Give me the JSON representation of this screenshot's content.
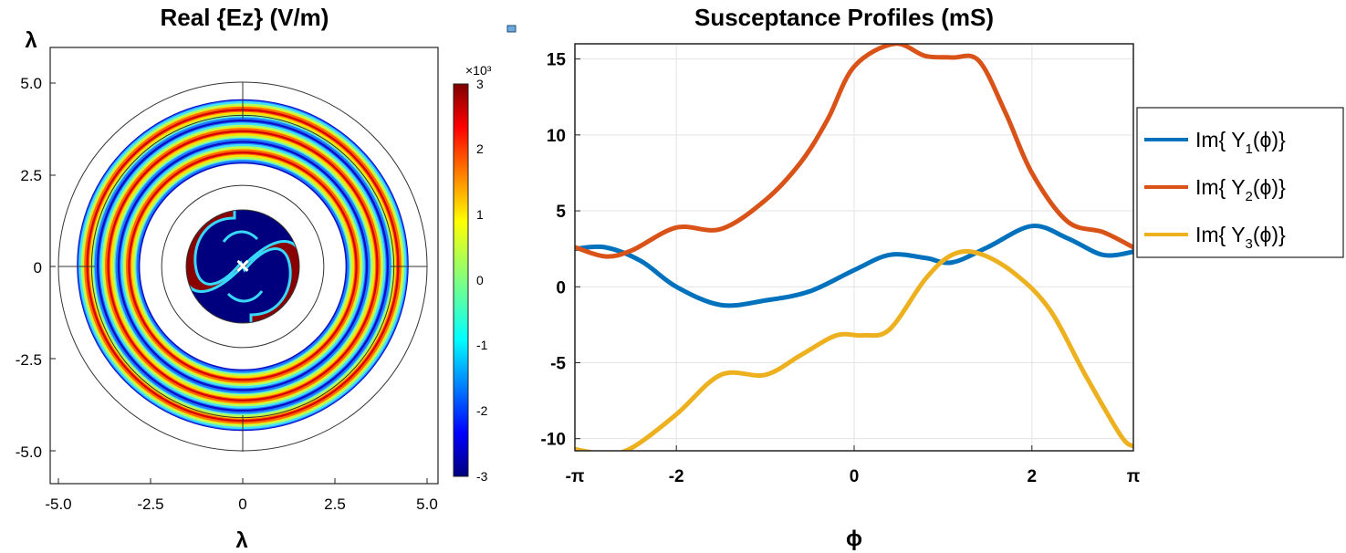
{
  "chart_data": [
    {
      "type": "heatmap",
      "title": "Real {Ez} (V/m)",
      "xlabel": "λ",
      "ylabel": "λ",
      "xlim": [
        -5.2,
        5.2
      ],
      "ylim": [
        -5.8,
        5.8
      ],
      "xticks": [
        "-5.0",
        "-2.5",
        "0",
        "2.5",
        "5.0"
      ],
      "xtick_values": [
        -5,
        -2.5,
        0,
        2.5,
        5
      ],
      "yticks": [
        "5.0",
        "2.5",
        "0",
        "-2.5",
        "-5.0"
      ],
      "ytick_values": [
        5,
        2.5,
        0,
        -2.5,
        -5
      ],
      "colorbar": {
        "multiplier": "×10³",
        "ticks": [
          "3",
          "2",
          "1",
          "0",
          "-1",
          "-2",
          "-3"
        ],
        "range": [
          -3,
          3
        ]
      },
      "outline_circle_radii": [
        1.5,
        2.2,
        4.1,
        5.0
      ],
      "field_rings": [
        {
          "inner_radius": 2.8,
          "outer_radius": 4.5
        }
      ],
      "core_radius": 1.5,
      "source_marker": "×"
    },
    {
      "type": "line",
      "title": "Susceptance Profiles (mS)",
      "xlabel": "ϕ",
      "ylabel": "",
      "xlim": [
        -3.1416,
        3.1416
      ],
      "ylim": [
        -10.8,
        16
      ],
      "xticks": [
        "-π",
        "-2",
        "0",
        "2",
        "π"
      ],
      "xtick_values": [
        -3.1416,
        -2,
        0,
        2,
        3.1416
      ],
      "yticks": [
        "15",
        "10",
        "5",
        "0",
        "-5",
        "-10"
      ],
      "ytick_values": [
        15,
        10,
        5,
        0,
        -5,
        -10
      ],
      "grid": true,
      "legend": "right",
      "series": [
        {
          "name": "Im{ Y1(ϕ)}",
          "color": "#0072BD",
          "x": [
            -3.14,
            -2.8,
            -2.4,
            -2.0,
            -1.5,
            -1.0,
            -0.5,
            0.0,
            0.4,
            0.8,
            1.1,
            1.5,
            2.0,
            2.4,
            2.8,
            3.14
          ],
          "y": [
            2.5,
            2.6,
            1.7,
            0.0,
            -1.2,
            -0.9,
            -0.3,
            1.1,
            2.1,
            1.9,
            1.6,
            2.6,
            4.0,
            3.2,
            2.1,
            2.3
          ]
        },
        {
          "name": "Im{ Y2(ϕ)}",
          "color": "#D95319",
          "x": [
            -3.14,
            -2.8,
            -2.5,
            -2.0,
            -1.5,
            -1.0,
            -0.6,
            -0.3,
            0.0,
            0.45,
            0.8,
            1.1,
            1.4,
            1.7,
            2.0,
            2.4,
            2.8,
            3.14
          ],
          "y": [
            2.6,
            2.0,
            2.4,
            3.9,
            3.8,
            5.7,
            8.2,
            11.0,
            14.5,
            16.0,
            15.2,
            15.1,
            14.9,
            11.5,
            7.5,
            4.3,
            3.6,
            2.6
          ],
          "note": "Color is coded as orange-red"
        },
        {
          "name": "Im{ Y3(ϕ)}",
          "color": "#EDB120",
          "x": [
            -3.14,
            -2.8,
            -2.5,
            -2.0,
            -1.5,
            -1.0,
            -0.6,
            -0.2,
            0.1,
            0.4,
            0.8,
            1.1,
            1.4,
            1.8,
            2.2,
            2.6,
            3.0,
            3.14
          ],
          "y": [
            -10.7,
            -11.0,
            -10.6,
            -8.4,
            -5.8,
            -5.8,
            -4.5,
            -3.2,
            -3.2,
            -2.8,
            0.5,
            2.1,
            2.2,
            0.9,
            -1.5,
            -5.8,
            -9.8,
            -10.5
          ]
        }
      ]
    }
  ]
}
